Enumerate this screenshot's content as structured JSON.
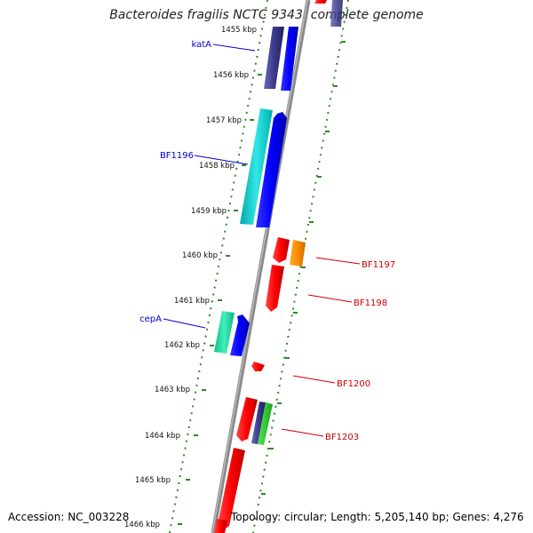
{
  "header": {
    "title": "Bacteroides fragilis NCTC 9343, complete genome"
  },
  "footer": {
    "accession": "Accession: NC_003228",
    "topology": "Topology: circular; Length: 5,205,140 bp; Genes: 4,276"
  },
  "ticks": [
    {
      "label": "1455 kbp"
    },
    {
      "label": "1456 kbp"
    },
    {
      "label": "1457 kbp"
    },
    {
      "label": "1458 kbp"
    },
    {
      "label": "1459 kbp"
    },
    {
      "label": "1460 kbp"
    },
    {
      "label": "1461 kbp"
    },
    {
      "label": "1462 kbp"
    },
    {
      "label": "1463 kbp"
    },
    {
      "label": "1464 kbp"
    },
    {
      "label": "1465 kbp"
    },
    {
      "label": "1466 kbp"
    }
  ],
  "gene_labels_left": [
    {
      "name": "katA"
    },
    {
      "name": "BF1196"
    },
    {
      "name": "cepA"
    }
  ],
  "gene_labels_right": [
    {
      "name": "BF1197"
    },
    {
      "name": "BF1198"
    },
    {
      "name": "BF1200"
    },
    {
      "name": "BF1203"
    }
  ],
  "colors": {
    "backbone": "#808080",
    "tick_dots": "#2e8b22",
    "left_label": "#0000cc",
    "right_label": "#cc0000",
    "gene_red": "#ff0000",
    "gene_blue": "#0000ff",
    "gene_cyan": "#00c8c8",
    "gene_navy": "#3a3a8c",
    "gene_teal": "#20d8a0",
    "gene_orange": "#ff8c00",
    "gene_green": "#33cc33"
  }
}
